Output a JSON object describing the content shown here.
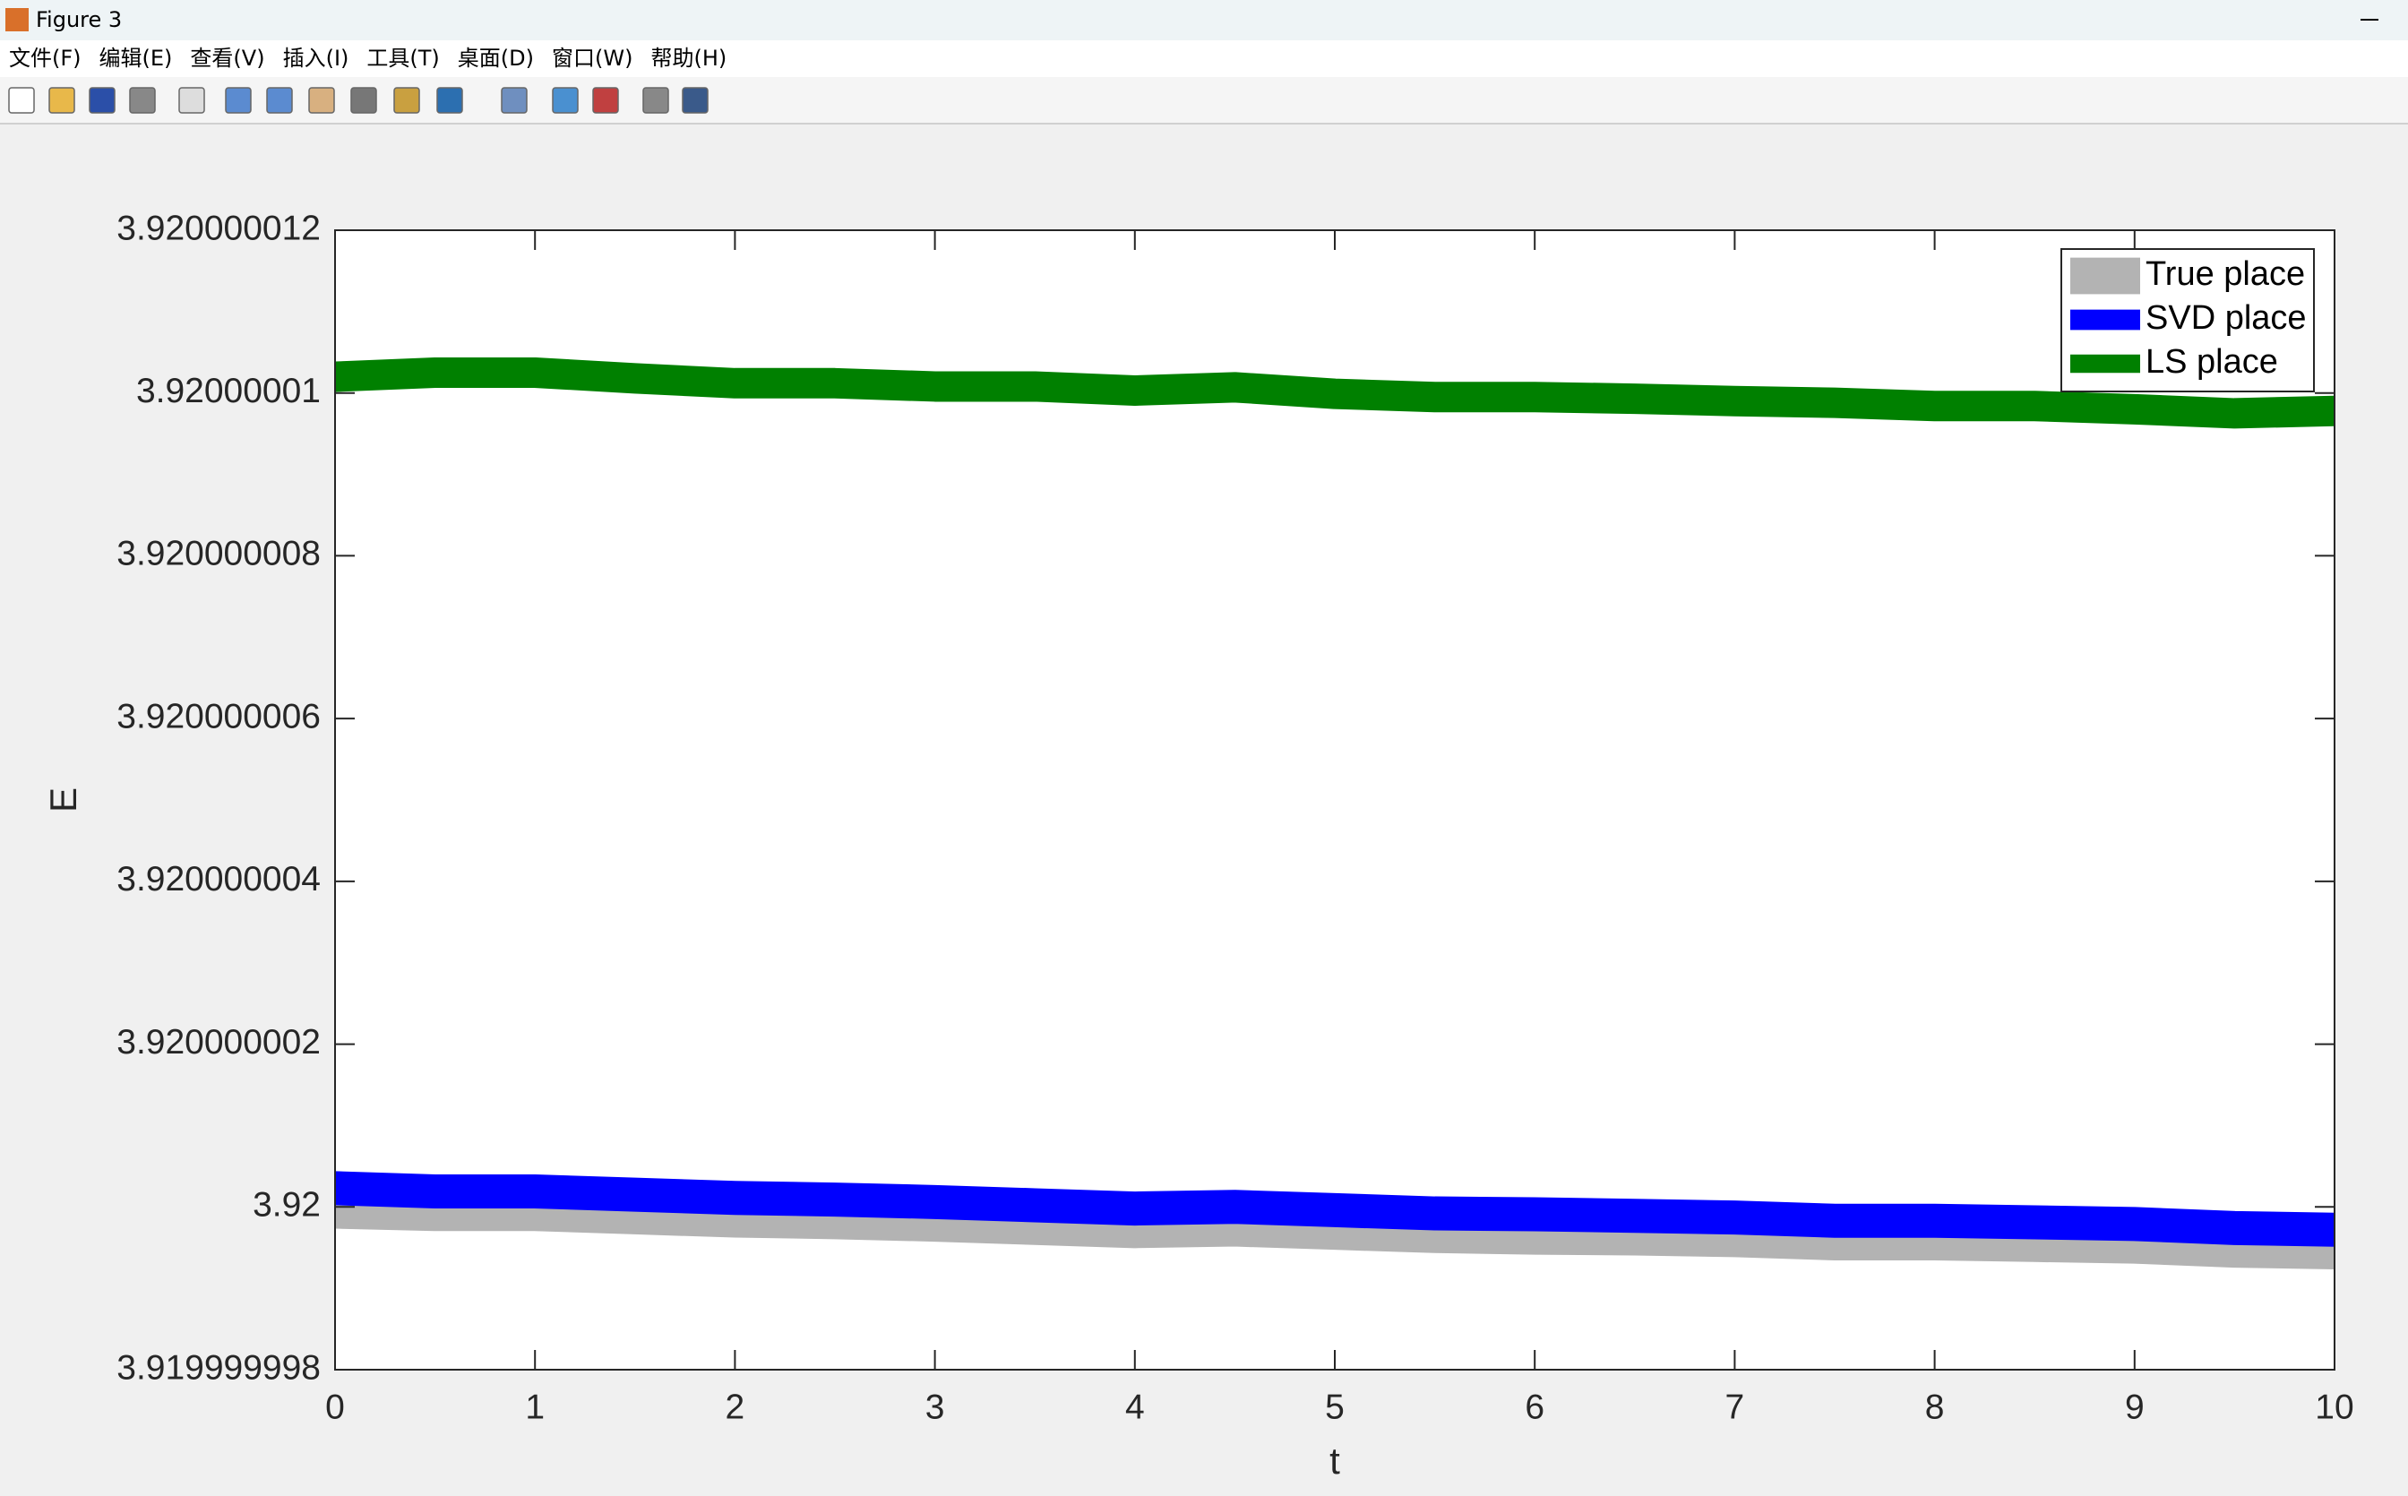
{
  "window": {
    "title": "Figure 3",
    "menu": [
      "文件(F)",
      "编辑(E)",
      "查看(V)",
      "插入(I)",
      "工具(T)",
      "桌面(D)",
      "窗口(W)",
      "帮助(H)"
    ]
  },
  "chart_data": {
    "type": "line",
    "x_label": "t",
    "y_label": "E",
    "x": [
      0,
      0.5,
      1,
      1.5,
      2,
      2.5,
      3,
      3.5,
      4,
      4.5,
      5,
      5.5,
      6,
      6.5,
      7,
      7.5,
      8,
      8.5,
      9,
      9.5,
      10
    ],
    "series": [
      {
        "name": "True place",
        "color": "#b3b3b3",
        "values": [
          3.91999999992,
          3.91999999989,
          3.91999999989,
          3.91999999985,
          3.91999999981,
          3.91999999979,
          3.91999999976,
          3.91999999972,
          3.91999999968,
          3.9199999997,
          3.91999999966,
          3.91999999962,
          3.9199999996,
          3.91999999959,
          3.91999999957,
          3.91999999953,
          3.91999999953,
          3.91999999951,
          3.91999999949,
          3.91999999944,
          3.91999999942
        ]
      },
      {
        "name": "SVD place",
        "color": "#0000ff",
        "values": [
          3.92000000023,
          3.92000000019,
          3.92000000019,
          3.92000000015,
          3.92000000011,
          3.92000000009,
          3.92000000006,
          3.92000000002,
          3.91999999998,
          3.92,
          3.91999999996,
          3.91999999992,
          3.91999999991,
          3.91999999989,
          3.91999999987,
          3.91999999983,
          3.91999999983,
          3.91999999981,
          3.91999999979,
          3.91999999974,
          3.91999999972
        ]
      },
      {
        "name": "LS place",
        "color": "#008000",
        "values": [
          3.9200000102,
          3.92000001025,
          3.92000001025,
          3.92000001018,
          3.92000001012,
          3.92000001012,
          3.92000001008,
          3.92000001008,
          3.92000001003,
          3.92000001007,
          3.92000000999,
          3.92000000995,
          3.92000000995,
          3.92000000993,
          3.9200000099,
          3.92000000988,
          3.92000000984,
          3.92000000984,
          3.9200000098,
          3.92000000975,
          3.92000000978
        ]
      }
    ],
    "xlim": [
      0,
      10
    ],
    "xticks": [
      0,
      1,
      2,
      3,
      4,
      5,
      6,
      7,
      8,
      9,
      10
    ],
    "ylim": [
      3.919999998,
      3.920000012
    ],
    "yticks": [
      3.919999998,
      3.92,
      3.920000002,
      3.920000004,
      3.920000006,
      3.920000008,
      3.92000001,
      3.920000012
    ],
    "legend": "upper right",
    "grid": false
  }
}
